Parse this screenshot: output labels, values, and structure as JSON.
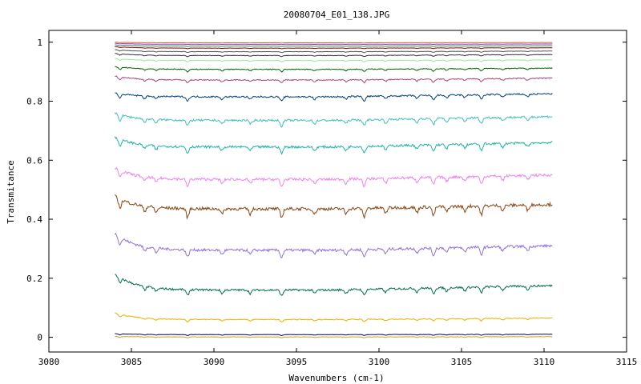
{
  "chart_data": {
    "type": "line",
    "title": "20080704_E01_138.JPG",
    "xlabel": "Wavenumbers (cm-1)",
    "ylabel": "Transmitance",
    "xlim": [
      3080,
      3115
    ],
    "ylim": [
      -0.05,
      1.04
    ],
    "x_ticks": [
      3080,
      3085,
      3090,
      3095,
      3100,
      3105,
      3110,
      3115
    ],
    "y_ticks": [
      0,
      0.2,
      0.4,
      0.6,
      0.8,
      1
    ],
    "x_tick_labels": [
      "3080",
      "3085",
      "3090",
      "3095",
      "3100",
      "3105",
      "3110",
      "3115"
    ],
    "y_tick_labels": [
      "0",
      "0.2",
      "0.4",
      "0.6",
      "0.8",
      "1"
    ],
    "grid": false,
    "legend": "none",
    "x_range": [
      3084,
      3110.5
    ],
    "dip_positions": [
      3084.3,
      3085.8,
      3086.5,
      3088.4,
      3090.5,
      3092.2,
      3094.1,
      3096.1,
      3098.0,
      3099.1,
      3100.4,
      3102.3,
      3103.3,
      3104.1,
      3105.2,
      3106.2,
      3107.5,
      3109.0
    ],
    "series": [
      {
        "color": "#d4a017",
        "start": 0.003,
        "base": 0.001,
        "end": 0.002,
        "depth": 0.003
      },
      {
        "color": "#000080",
        "start": 0.012,
        "base": 0.009,
        "end": 0.01,
        "depth": 0.003
      },
      {
        "color": "#e8b000",
        "start": 0.083,
        "base": 0.06,
        "end": 0.065,
        "depth": 0.008
      },
      {
        "color": "#006e50",
        "start": 0.215,
        "base": 0.16,
        "end": 0.175,
        "depth": 0.02
      },
      {
        "color": "#9370db",
        "start": 0.352,
        "base": 0.295,
        "end": 0.31,
        "depth": 0.025
      },
      {
        "color": "#8b4513",
        "start": 0.478,
        "base": 0.435,
        "end": 0.45,
        "depth": 0.03
      },
      {
        "color": "#ee82ee",
        "start": 0.575,
        "base": 0.535,
        "end": 0.55,
        "depth": 0.025
      },
      {
        "color": "#20b2aa",
        "start": 0.678,
        "base": 0.645,
        "end": 0.66,
        "depth": 0.022
      },
      {
        "color": "#40c0c0",
        "start": 0.76,
        "base": 0.735,
        "end": 0.748,
        "depth": 0.02
      },
      {
        "color": "#004080",
        "start": 0.828,
        "base": 0.815,
        "end": 0.825,
        "depth": 0.015
      },
      {
        "color": "#b04080",
        "start": 0.885,
        "base": 0.872,
        "end": 0.878,
        "depth": 0.01
      },
      {
        "color": "#006400",
        "start": 0.918,
        "base": 0.908,
        "end": 0.912,
        "depth": 0.008
      },
      {
        "color": "#90ee90",
        "start": 0.945,
        "base": 0.938,
        "end": 0.94,
        "depth": 0.005
      },
      {
        "color": "#333333",
        "start": 0.962,
        "base": 0.955,
        "end": 0.958,
        "depth": 0.004
      },
      {
        "color": "#555555",
        "start": 0.975,
        "base": 0.968,
        "end": 0.97,
        "depth": 0.003
      },
      {
        "color": "#8b0000",
        "start": 0.985,
        "base": 0.98,
        "end": 0.981,
        "depth": 0.002
      },
      {
        "color": "#2e8b57",
        "start": 0.991,
        "base": 0.987,
        "end": 0.988,
        "depth": 0.002
      },
      {
        "color": "#9932cc",
        "start": 0.996,
        "base": 0.993,
        "end": 0.994,
        "depth": 0.001
      },
      {
        "color": "#d2691e",
        "start": 1.0,
        "base": 0.998,
        "end": 0.999,
        "depth": 0.001
      }
    ]
  }
}
